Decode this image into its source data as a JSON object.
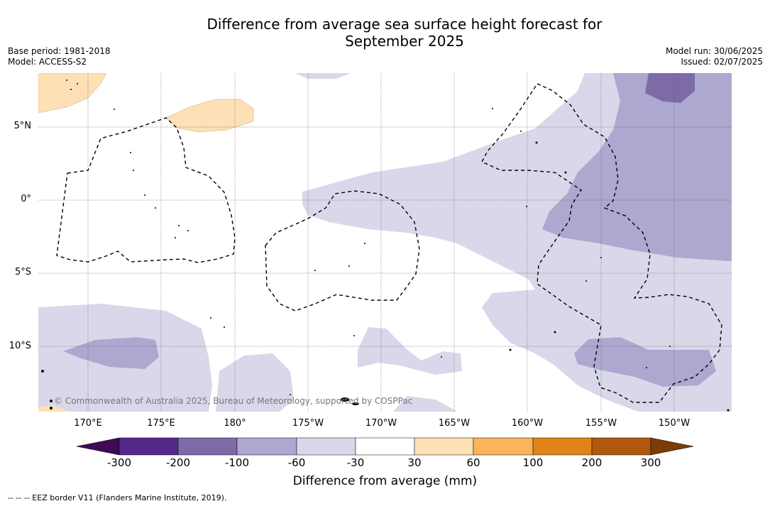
{
  "title_line1": "Difference from average sea surface height forecast for",
  "title_line2": "September 2025",
  "meta": {
    "base_period": "Base period: 1981-2018",
    "model": "Model: ACCESS-S2",
    "model_run": "Model run: 30/06/2025",
    "issued": "Issued: 02/07/2025"
  },
  "map": {
    "lat_labels": [
      "5°N",
      "0°",
      "5°S",
      "10°S"
    ],
    "lon_labels": [
      "170°E",
      "175°E",
      "180°",
      "175°W",
      "170°W",
      "165°W",
      "160°W",
      "155°W",
      "150°W"
    ],
    "credit": "© Commonwealth of Australia 2025, Bureau of Meteorology, supported by COSPPac"
  },
  "colorbar": {
    "title": "Difference from average (mm)",
    "ticks": [
      "-300",
      "-200",
      "-100",
      "-60",
      "-30",
      "30",
      "60",
      "100",
      "200",
      "300"
    ],
    "colors": [
      "#3f0a52",
      "#55298a",
      "#7d6ba8",
      "#aca8cf",
      "#d8d8ea",
      "#ffffff",
      "#fde0b6",
      "#f9b45c",
      "#e08419",
      "#b0590e",
      "#7b3c07"
    ]
  },
  "legend": "--  --  -- EEZ border V11 (Flanders Marine Institute, 2019)."
}
